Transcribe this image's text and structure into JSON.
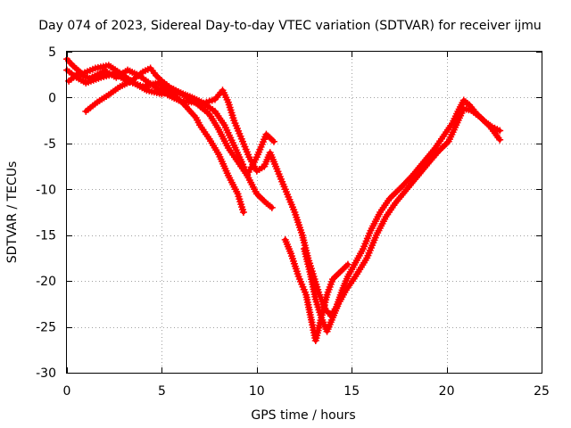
{
  "chart_data": {
    "type": "scatter",
    "title": "Day 074 of 2023, Sidereal Day-to-day VTEC variation (SDTVAR) for receiver ijmu",
    "xlabel": "GPS time / hours",
    "ylabel": "SDTVAR / TECUs",
    "xlim": [
      0,
      25
    ],
    "ylim": [
      -30,
      5
    ],
    "xticks": [
      0,
      5,
      10,
      15,
      20,
      25
    ],
    "yticks": [
      -30,
      -25,
      -20,
      -15,
      -10,
      -5,
      0,
      5
    ],
    "xtick_labels": [
      "0",
      "5",
      "10",
      "15",
      "20",
      "25"
    ],
    "ytick_labels": [
      "-30",
      "-25",
      "-20",
      "-15",
      "-10",
      "-5",
      "0",
      "5"
    ],
    "grid": true,
    "marker": "plus",
    "color": "#ff0000",
    "series": [
      {
        "name": "track-1",
        "points": [
          [
            0.0,
            3.0
          ],
          [
            0.5,
            2.2
          ],
          [
            1.0,
            1.6
          ],
          [
            1.8,
            2.2
          ],
          [
            2.5,
            2.6
          ],
          [
            3.2,
            1.8
          ],
          [
            4.0,
            1.2
          ],
          [
            4.8,
            1.6
          ],
          [
            5.5,
            0.6
          ],
          [
            6.2,
            -0.8
          ],
          [
            6.8,
            -2.2
          ],
          [
            7.0,
            -3.0
          ],
          [
            7.5,
            -4.5
          ],
          [
            8.0,
            -6.2
          ],
          [
            8.5,
            -8.5
          ],
          [
            9.0,
            -10.5
          ],
          [
            9.3,
            -12.5
          ]
        ]
      },
      {
        "name": "track-2",
        "points": [
          [
            0.0,
            4.2
          ],
          [
            0.3,
            3.5
          ],
          [
            0.8,
            2.6
          ],
          [
            1.5,
            3.2
          ],
          [
            2.2,
            3.5
          ],
          [
            3.0,
            2.4
          ],
          [
            3.6,
            1.5
          ],
          [
            4.2,
            0.8
          ],
          [
            5.0,
            0.4
          ],
          [
            5.6,
            0.9
          ],
          [
            6.2,
            0.2
          ],
          [
            6.8,
            -0.6
          ],
          [
            7.5,
            -1.8
          ],
          [
            8.0,
            -3.5
          ],
          [
            8.5,
            -5.5
          ],
          [
            9.0,
            -7.0
          ],
          [
            9.5,
            -8.5
          ],
          [
            10.0,
            -10.5
          ],
          [
            10.5,
            -11.5
          ],
          [
            10.8,
            -12.0
          ]
        ]
      },
      {
        "name": "track-3",
        "points": [
          [
            0.1,
            1.8
          ],
          [
            0.6,
            2.6
          ],
          [
            1.2,
            2.1
          ],
          [
            2.0,
            2.9
          ],
          [
            2.6,
            2.2
          ],
          [
            3.2,
            3.0
          ],
          [
            3.8,
            2.4
          ],
          [
            4.4,
            1.5
          ],
          [
            4.8,
            1.0
          ],
          [
            5.3,
            0.3
          ],
          [
            6.0,
            -0.4
          ],
          [
            6.7,
            -0.5
          ],
          [
            7.3,
            -0.8
          ],
          [
            7.8,
            -1.5
          ],
          [
            8.3,
            -3.0
          ],
          [
            8.8,
            -5.2
          ],
          [
            9.2,
            -7.0
          ],
          [
            9.5,
            -8.4
          ],
          [
            10.0,
            -6.5
          ],
          [
            10.5,
            -4.0
          ],
          [
            10.9,
            -4.8
          ]
        ]
      },
      {
        "name": "track-4",
        "points": [
          [
            1.0,
            -1.5
          ],
          [
            1.6,
            -0.5
          ],
          [
            2.2,
            0.3
          ],
          [
            2.8,
            1.2
          ],
          [
            3.4,
            1.8
          ],
          [
            4.0,
            2.8
          ],
          [
            4.4,
            3.2
          ],
          [
            4.7,
            2.4
          ],
          [
            5.0,
            1.8
          ],
          [
            5.5,
            1.0
          ],
          [
            6.0,
            0.5
          ],
          [
            6.6,
            0.0
          ],
          [
            7.2,
            -0.6
          ],
          [
            7.8,
            -0.2
          ],
          [
            8.2,
            0.8
          ],
          [
            8.5,
            -0.5
          ],
          [
            8.8,
            -2.5
          ],
          [
            9.2,
            -4.5
          ],
          [
            9.6,
            -6.5
          ],
          [
            10.0,
            -8.0
          ],
          [
            10.4,
            -7.5
          ],
          [
            10.7,
            -6.0
          ],
          [
            11.0,
            -7.5
          ],
          [
            11.5,
            -10.0
          ],
          [
            12.0,
            -12.5
          ],
          [
            12.4,
            -15.0
          ],
          [
            12.7,
            -17.5
          ],
          [
            13.0,
            -19.5
          ],
          [
            13.3,
            -21.5
          ],
          [
            13.6,
            -23.0
          ],
          [
            13.9,
            -23.8
          ],
          [
            14.2,
            -22.8
          ],
          [
            14.5,
            -21.0
          ],
          [
            14.8,
            -19.5
          ],
          [
            15.2,
            -18.0
          ],
          [
            15.6,
            -16.5
          ],
          [
            16.0,
            -14.5
          ],
          [
            16.5,
            -12.5
          ],
          [
            17.0,
            -11.0
          ],
          [
            17.6,
            -9.8
          ],
          [
            18.2,
            -8.5
          ],
          [
            18.8,
            -7.0
          ],
          [
            19.4,
            -5.5
          ],
          [
            19.9,
            -4.0
          ],
          [
            20.3,
            -2.8
          ],
          [
            20.6,
            -1.5
          ],
          [
            20.9,
            -0.3
          ],
          [
            21.2,
            -0.8
          ],
          [
            21.6,
            -1.8
          ],
          [
            22.0,
            -2.6
          ],
          [
            22.4,
            -3.2
          ],
          [
            22.8,
            -3.6
          ]
        ]
      },
      {
        "name": "track-5",
        "points": [
          [
            11.5,
            -15.5
          ],
          [
            11.8,
            -17.0
          ],
          [
            12.2,
            -19.5
          ],
          [
            12.6,
            -21.5
          ],
          [
            12.9,
            -24.5
          ],
          [
            13.1,
            -26.5
          ],
          [
            13.4,
            -24.0
          ],
          [
            13.7,
            -21.5
          ],
          [
            14.0,
            -19.8
          ],
          [
            14.4,
            -19.0
          ],
          [
            14.8,
            -18.2
          ]
        ]
      },
      {
        "name": "track-6",
        "points": [
          [
            12.5,
            -16.5
          ],
          [
            12.8,
            -19.0
          ],
          [
            13.1,
            -22.0
          ],
          [
            13.4,
            -24.0
          ],
          [
            13.7,
            -25.5
          ],
          [
            14.0,
            -24.0
          ],
          [
            14.3,
            -22.5
          ],
          [
            14.7,
            -21.0
          ],
          [
            15.2,
            -19.5
          ],
          [
            15.8,
            -17.5
          ],
          [
            16.3,
            -15.0
          ],
          [
            16.8,
            -13.0
          ],
          [
            17.3,
            -11.5
          ],
          [
            17.9,
            -10.0
          ],
          [
            18.5,
            -8.5
          ],
          [
            19.1,
            -7.0
          ],
          [
            19.6,
            -5.8
          ],
          [
            20.1,
            -4.8
          ],
          [
            20.5,
            -3.0
          ],
          [
            20.9,
            -1.2
          ],
          [
            21.3,
            -1.4
          ],
          [
            21.8,
            -2.2
          ],
          [
            22.3,
            -3.2
          ],
          [
            22.8,
            -4.6
          ]
        ]
      }
    ]
  }
}
